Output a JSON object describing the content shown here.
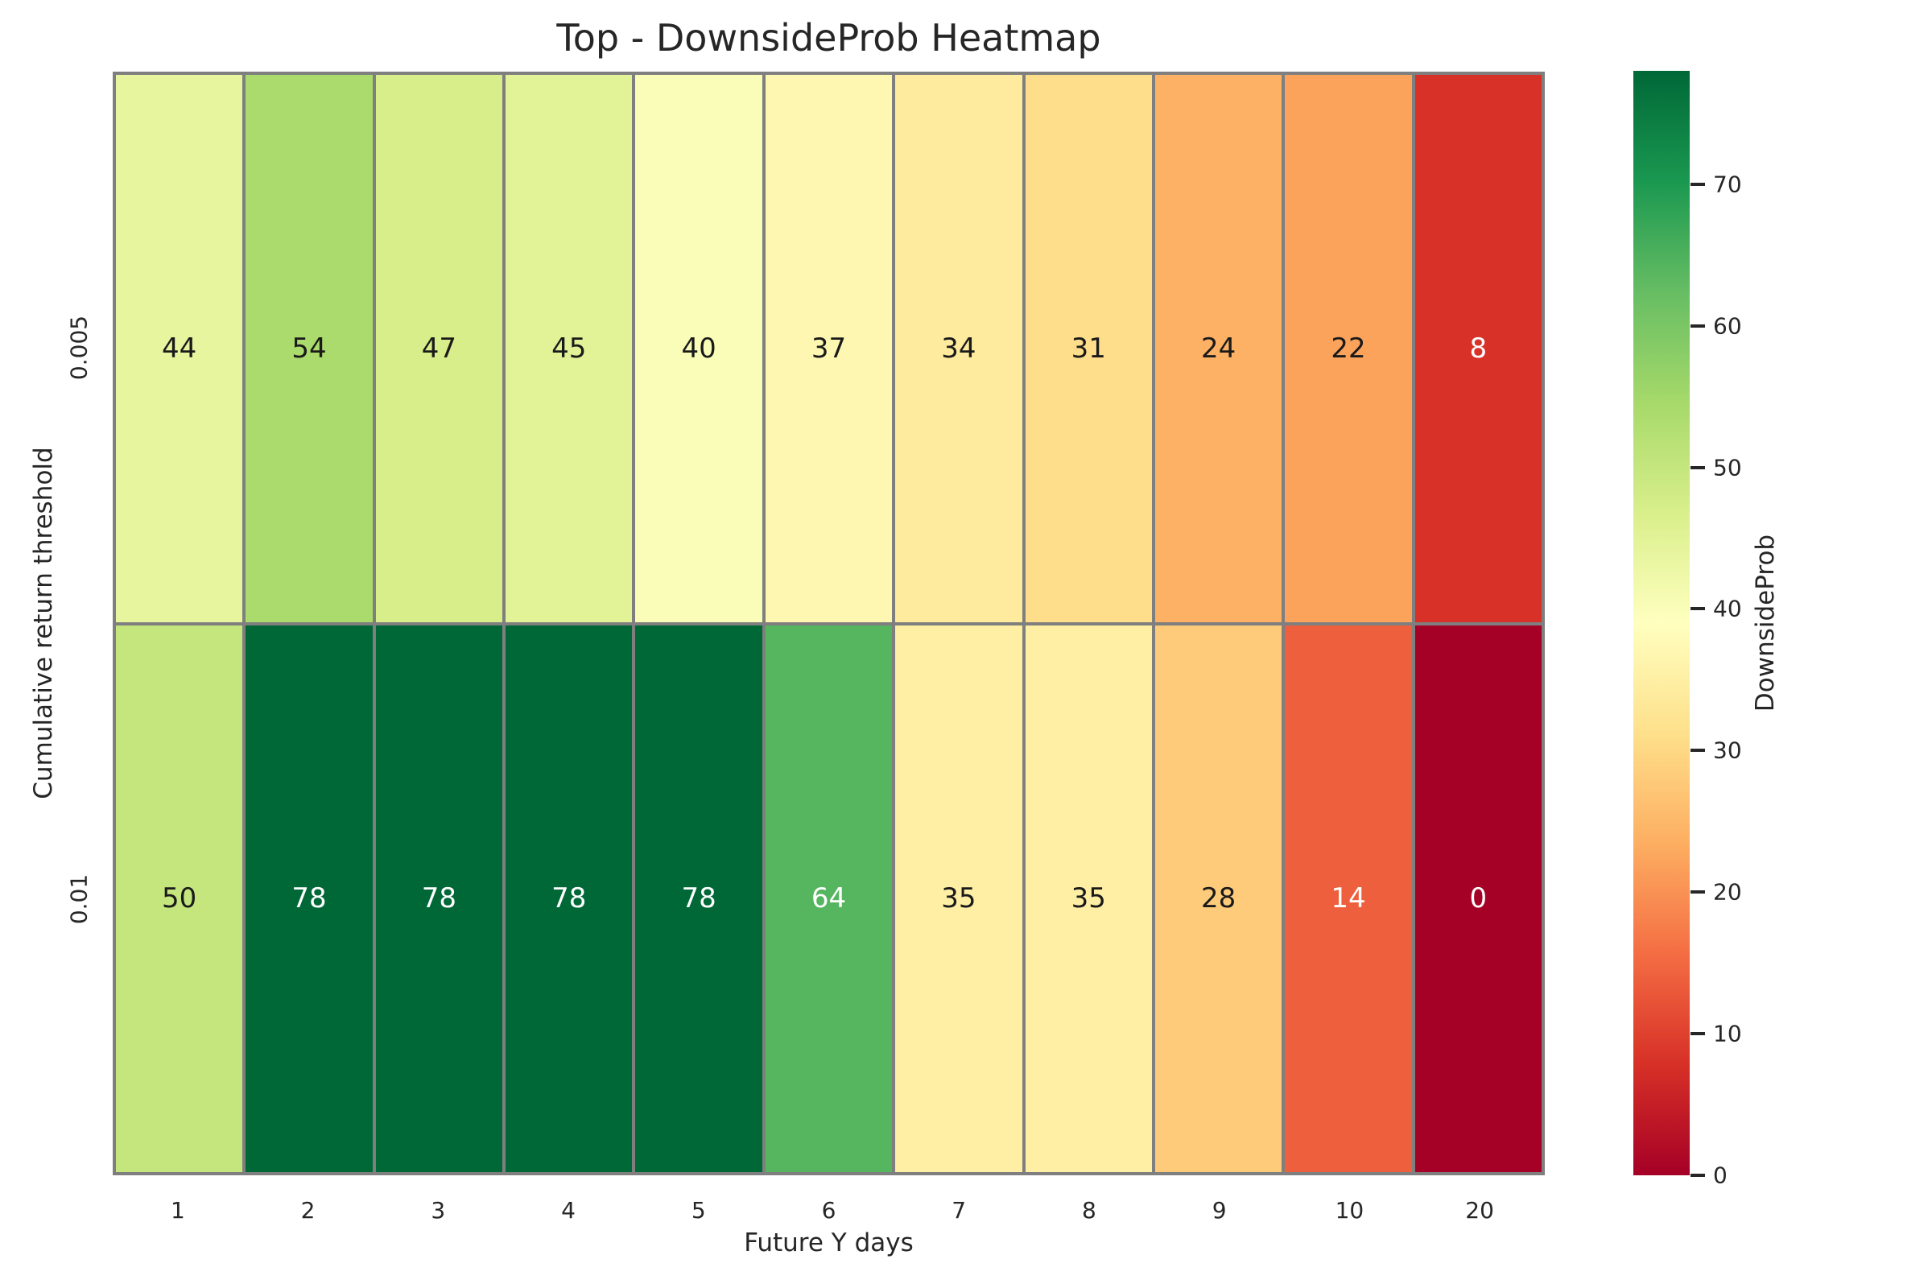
{
  "chart_data": {
    "type": "heatmap",
    "title": "Top - DownsideProb Heatmap",
    "xlabel": "Future Y days",
    "ylabel": "Cumulative return threshold",
    "x_categories": [
      "1",
      "2",
      "3",
      "4",
      "5",
      "6",
      "7",
      "8",
      "9",
      "10",
      "20"
    ],
    "y_categories": [
      "0.005",
      "0.01"
    ],
    "values": [
      [
        44,
        54,
        47,
        45,
        40,
        37,
        34,
        31,
        24,
        22,
        8
      ],
      [
        50,
        78,
        78,
        78,
        78,
        64,
        35,
        35,
        28,
        14,
        0
      ]
    ],
    "cell_colors": [
      [
        "#e7f59e",
        "#aadb6c",
        "#d8ee8a",
        "#e2f297",
        "#fafdb8",
        "#fef7b1",
        "#feeb9d",
        "#fede8a",
        "#fdb164",
        "#fba25b",
        "#d73128"
      ],
      [
        "#c4e67d",
        "#006837",
        "#006837",
        "#006837",
        "#006837",
        "#56b55f",
        "#feefa4",
        "#feefa4",
        "#fecb7a",
        "#ee603d",
        "#a50026"
      ]
    ],
    "cell_text_colors": [
      [
        "#1a1a1a",
        "#1a1a1a",
        "#1a1a1a",
        "#1a1a1a",
        "#1a1a1a",
        "#1a1a1a",
        "#1a1a1a",
        "#1a1a1a",
        "#1a1a1a",
        "#1a1a1a",
        "#ffffff"
      ],
      [
        "#1a1a1a",
        "#ffffff",
        "#ffffff",
        "#ffffff",
        "#ffffff",
        "#ffffff",
        "#1a1a1a",
        "#1a1a1a",
        "#1a1a1a",
        "#ffffff",
        "#ffffff"
      ]
    ],
    "colormap": "RdYlGn",
    "vmin": 0,
    "vmax": 78,
    "grid_line_color": "#7f7f7f",
    "annotations": true,
    "legend_position": "right",
    "colorbar": {
      "label": "DownsideProb",
      "ticks": [
        0,
        10,
        20,
        30,
        40,
        50,
        60,
        70
      ],
      "gradient_stops": [
        "#a50026",
        "#d73027",
        "#f46d43",
        "#fdae61",
        "#fee08b",
        "#ffffbf",
        "#d9ef8b",
        "#a6d96a",
        "#66bd63",
        "#1a9850",
        "#006837"
      ]
    }
  }
}
